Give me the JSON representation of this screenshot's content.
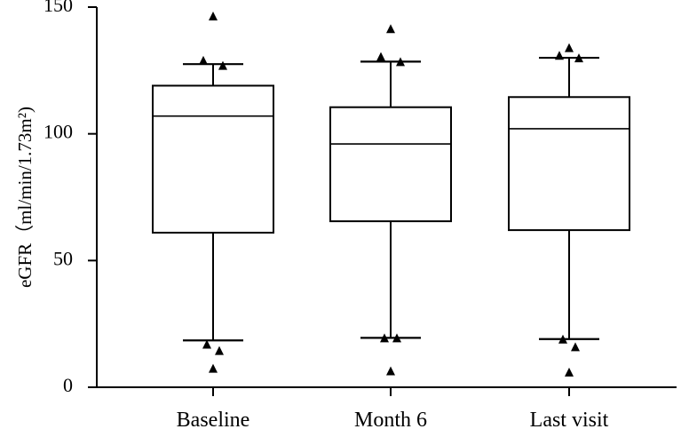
{
  "chart_data": {
    "type": "box",
    "title": "",
    "xlabel": "",
    "ylabel": "eGFR（ml/min/1.73m²)",
    "ylim": [
      0,
      150
    ],
    "yticks": [
      0,
      50,
      100,
      150
    ],
    "grid": false,
    "categories": [
      "Baseline",
      "Month 6",
      "Last visit"
    ],
    "boxes": [
      {
        "label": "Baseline",
        "whisker_low": 18.5,
        "q1": 61,
        "median": 107,
        "q3": 119,
        "whisker_high": 127.5,
        "outliers": [
          146.5,
          129,
          127,
          17,
          14.5,
          7.5
        ]
      },
      {
        "label": "Month 6",
        "whisker_low": 19.5,
        "q1": 65.5,
        "median": 96,
        "q3": 110.5,
        "whisker_high": 128.5,
        "outliers": [
          141.5,
          130.5,
          128.5,
          19.5,
          19.5,
          6.5
        ]
      },
      {
        "label": "Last visit",
        "whisker_low": 19,
        "q1": 62,
        "median": 102,
        "q3": 114.5,
        "whisker_high": 130,
        "outliers": [
          134,
          131,
          130,
          19,
          16,
          6
        ]
      }
    ]
  }
}
